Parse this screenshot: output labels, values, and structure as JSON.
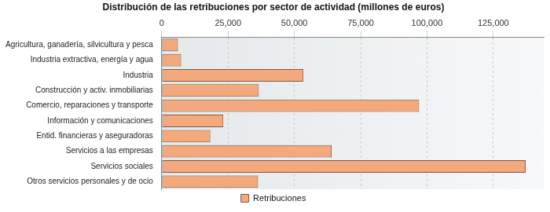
{
  "chart_data": {
    "type": "bar",
    "title": "Distribución de las retribuciones por sector de actividad (millones de euros)",
    "orientation": "horizontal",
    "categories": [
      "Agricultura, ganadería, silvicultura y pesca",
      "Industria extractiva, energía y agua",
      "Industria",
      "Construcción y activ. inmobiliarias",
      "Comercio, reparaciones y transporte",
      "Información y comunicaciones",
      "Entid. financieras y aseguradoras",
      "Servicios a las empresas",
      "Servicios sociales",
      "Otros servicios personales y de ocio"
    ],
    "series": [
      {
        "name": "Retribuciones",
        "color": "#f3a97c",
        "values": [
          6100,
          7300,
          53400,
          36600,
          97000,
          23200,
          18300,
          64000,
          137200,
          36300
        ]
      }
    ],
    "xlim": [
      0,
      144000
    ],
    "xticks": [
      0,
      {
        "value": 25000,
        "label": "25,000"
      },
      {
        "value": 50000,
        "label": "50,000"
      },
      {
        "value": 75000,
        "label": "75,000"
      },
      {
        "value": 100000,
        "label": "100,000"
      },
      {
        "value": 125000,
        "label": "125,000"
      }
    ],
    "grid": true,
    "legend": "bottom"
  }
}
